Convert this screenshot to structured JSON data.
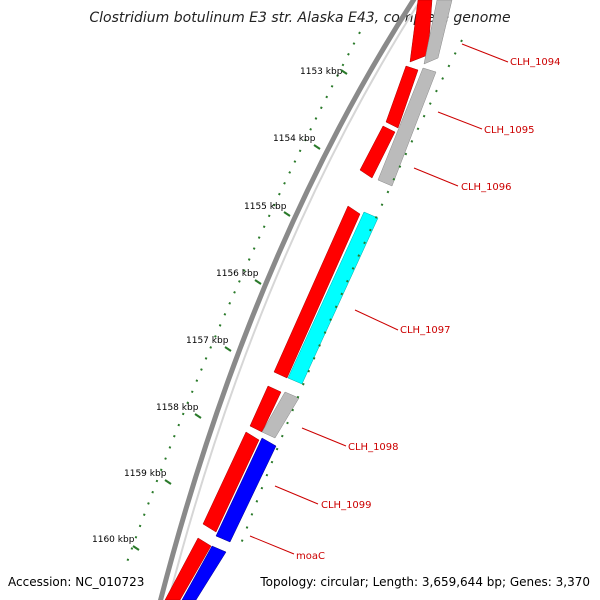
{
  "title": "Clostridium botulinum E3 str. Alaska E43, complete genome",
  "accession_text": "Accession: NC_010723",
  "summary_text": "Topology: circular; Length: 3,659,644 bp; Genes: 3,370",
  "colors": {
    "backbone": "#8a8a8a",
    "forward_gene": "#ff0000",
    "reverse_gene": "#bbbbbb",
    "highlight_cyan": "#00ffff",
    "highlight_blue": "#0000ff",
    "tick": "#2a7a2a",
    "label": "#cc0000"
  },
  "kbp_ticks": [
    {
      "label": "1153 kbp"
    },
    {
      "label": "1154 kbp"
    },
    {
      "label": "1155 kbp"
    },
    {
      "label": "1156 kbp"
    },
    {
      "label": "1157 kbp"
    },
    {
      "label": "1158 kbp"
    },
    {
      "label": "1159 kbp"
    },
    {
      "label": "1160 kbp"
    }
  ],
  "gene_labels": [
    {
      "name": "CLH_1094"
    },
    {
      "name": "CLH_1095"
    },
    {
      "name": "CLH_1096"
    },
    {
      "name": "CLH_1097"
    },
    {
      "name": "CLH_1098"
    },
    {
      "name": "CLH_1099"
    },
    {
      "name": "moaC"
    }
  ]
}
